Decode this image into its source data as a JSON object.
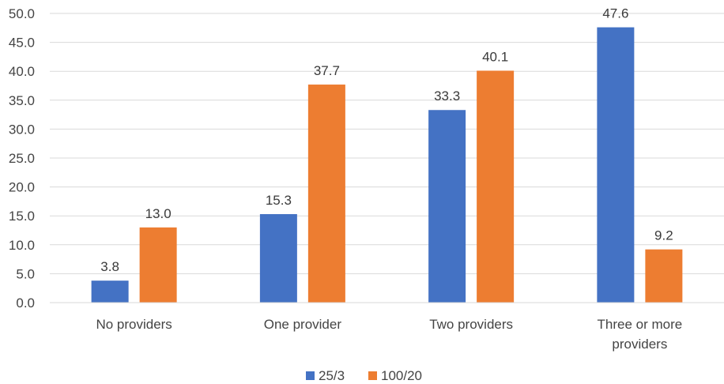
{
  "chart_data": {
    "type": "bar",
    "categories": [
      [
        "No providers"
      ],
      [
        "One provider"
      ],
      [
        "Two providers"
      ],
      [
        "Three or more",
        "providers"
      ]
    ],
    "series": [
      {
        "name": "25/3",
        "color": "#4472C4",
        "values": [
          3.8,
          15.3,
          33.3,
          47.6
        ]
      },
      {
        "name": "100/20",
        "color": "#ED7D31",
        "values": [
          13.0,
          37.7,
          40.1,
          9.2
        ]
      }
    ],
    "yticks": [
      "0.0",
      "5.0",
      "10.0",
      "15.0",
      "20.0",
      "25.0",
      "30.0",
      "35.0",
      "40.0",
      "45.0",
      "50.0"
    ],
    "ylim": [
      0,
      50
    ],
    "grid": true,
    "legend": "bottom-center",
    "title": "",
    "xlabel": "",
    "ylabel": ""
  }
}
